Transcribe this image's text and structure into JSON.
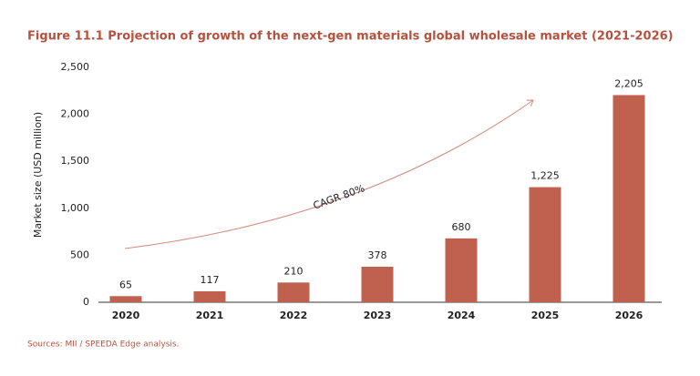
{
  "chart_data": {
    "type": "bar",
    "title": "Figure 11.1 Projection of growth of the next-gen materials global wholesale market (2021-2026)",
    "y_label": "Market size (USD million)",
    "categories": [
      "2020",
      "2021",
      "2022",
      "2023",
      "2024",
      "2025",
      "2026"
    ],
    "values": [
      65,
      117,
      210,
      378,
      680,
      1225,
      2205
    ],
    "value_labels": [
      "65",
      "117",
      "210",
      "378",
      "680",
      "1,225",
      "2,205"
    ],
    "color": "#c0604f",
    "ylim": [
      0,
      2500
    ],
    "yticks": [
      0,
      500,
      {
        "value": 1000,
        "label": "1,000"
      },
      {
        "value": 1500,
        "label": "1,500"
      },
      {
        "value": 2000,
        "label": "2,000"
      },
      {
        "value": 2500,
        "label": "2,500"
      }
    ],
    "grid": false,
    "annotation": "CAGR 80%",
    "source": "Sources: MII / SPEEDA Edge analysis."
  }
}
